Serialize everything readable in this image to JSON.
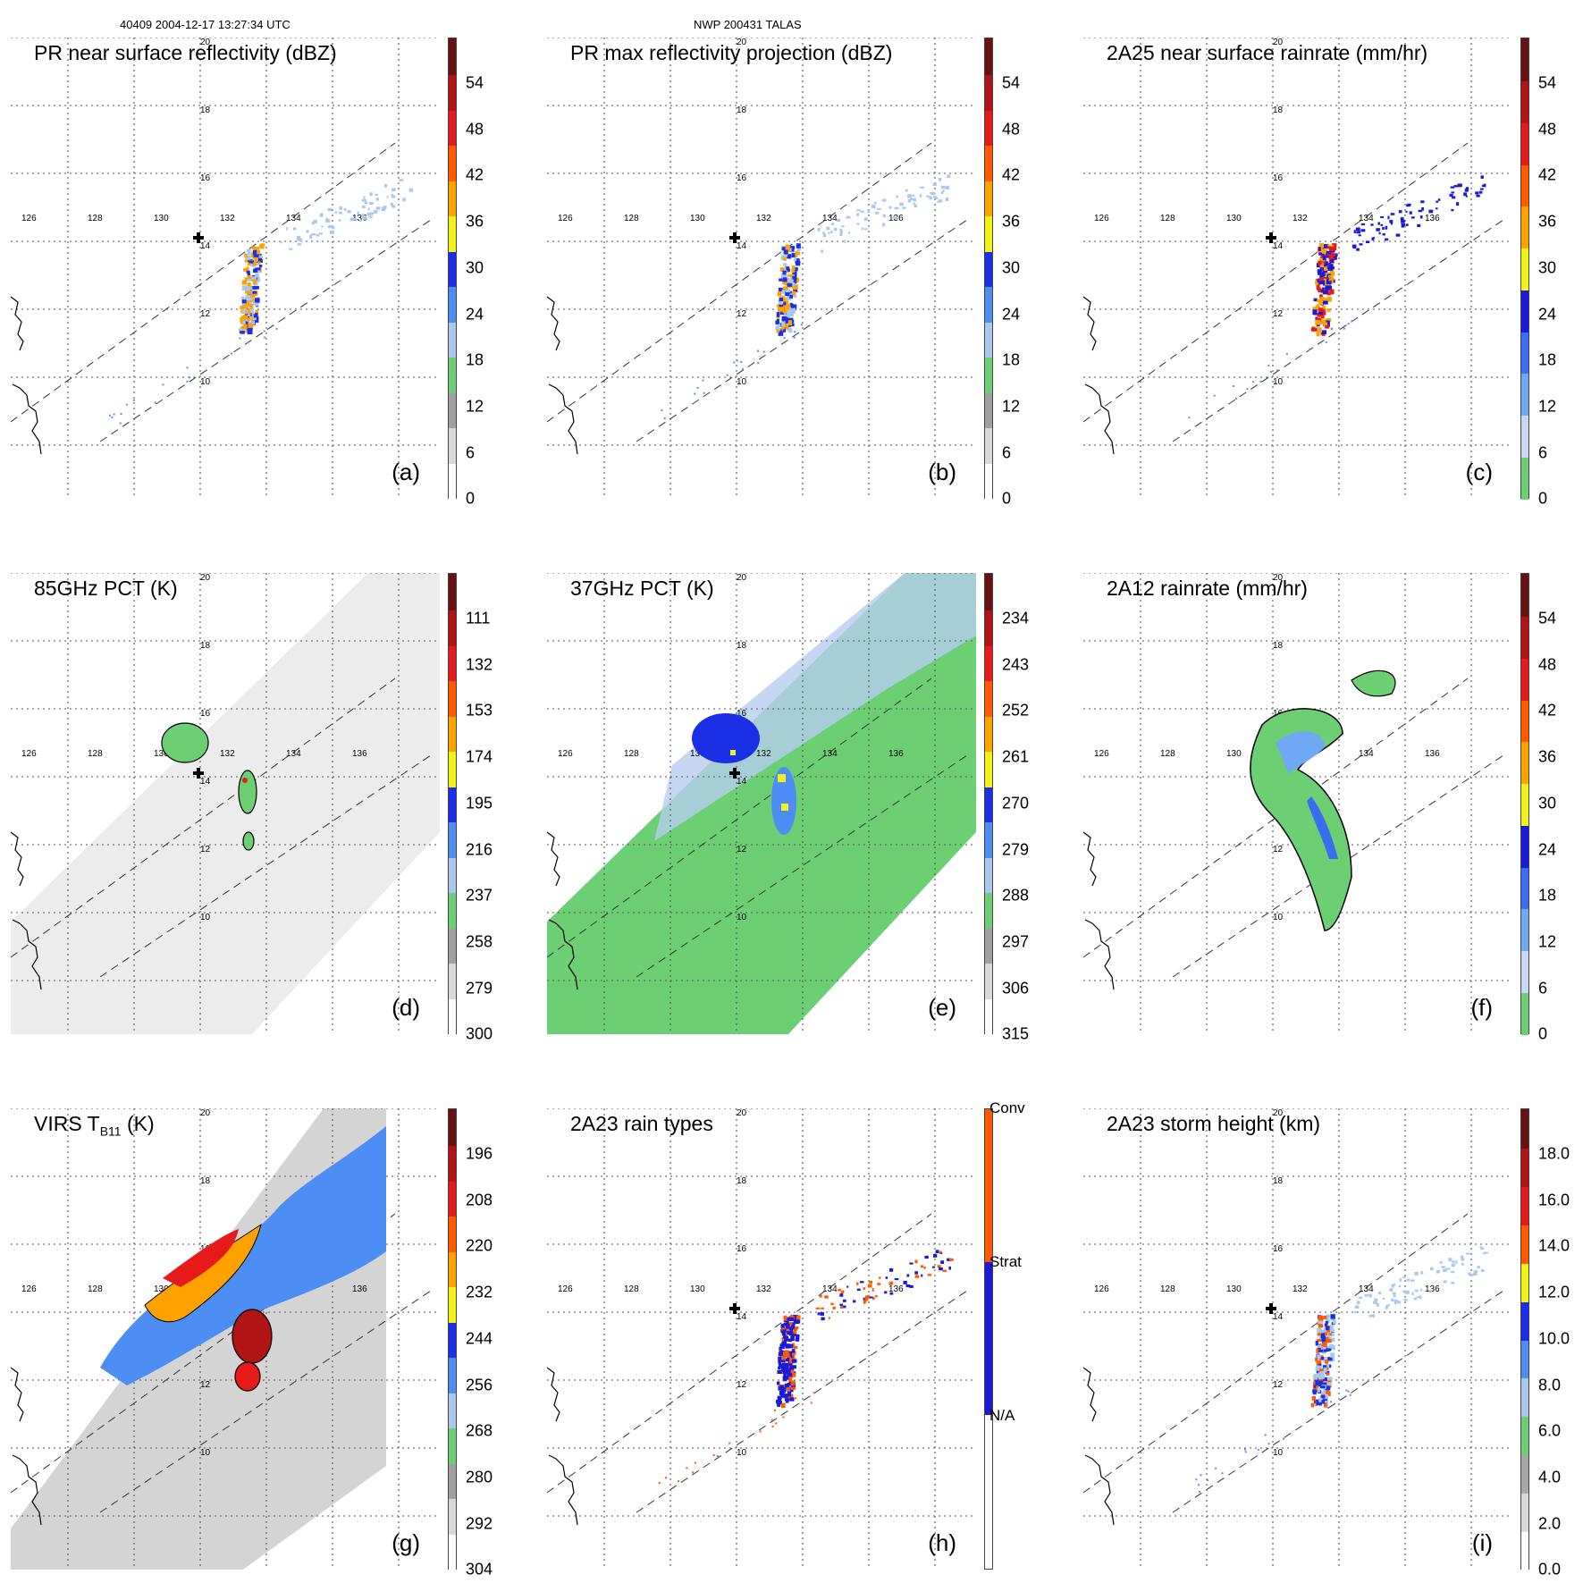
{
  "header": {
    "left": "40409 2004-12-17 13:27:34 UTC",
    "center": "NWP 200431 TALAS"
  },
  "map": {
    "lon_labels": [
      "126",
      "128",
      "130",
      "132",
      "134",
      "136"
    ],
    "lat_labels": [
      "20",
      "18",
      "16",
      "14",
      "12",
      "10"
    ]
  },
  "palettes": {
    "rainbow": [
      "#ffffff",
      "#d9d9d9",
      "#a0a0a0",
      "#6ccf74",
      "#a8c8f0",
      "#4d8ef5",
      "#1a2fe6",
      "#f2f21a",
      "#ffa200",
      "#ff5a00",
      "#e61a1a",
      "#b01414",
      "#6b1010"
    ],
    "rain": [
      "#6ccf74",
      "#c8d8f2",
      "#6fa9f5",
      "#3a6ef0",
      "#1a1ad8",
      "#f2f21a",
      "#ffa200",
      "#ff5a00",
      "#e61a1a",
      "#b01414",
      "#6b1010"
    ],
    "height": [
      "#ffffff",
      "#d9d9d9",
      "#a8a8a8",
      "#6ccf74",
      "#a8c8f0",
      "#4d8ef5",
      "#1a2fe6",
      "#f2f21a",
      "#ff5a00",
      "#e61a1a",
      "#b01414",
      "#6b1010"
    ],
    "types": [
      "#ffffff",
      "#1a1ad8",
      "#ff5a00"
    ]
  },
  "panels": [
    {
      "label": "(a)",
      "title": "PR near surface reflectivity (dBZ)",
      "palette": "rainbow",
      "colorbar_ticks": [
        "54",
        "48",
        "42",
        "36",
        "30",
        "24",
        "18",
        "12",
        "6",
        "0"
      ],
      "chart_data": {
        "type": "heatmap",
        "field": "near surface reflectivity",
        "units": "dBZ",
        "cmin": 0,
        "cmax": 60,
        "swath": "PR"
      }
    },
    {
      "label": "(b)",
      "title": "PR max reflectivity projection (dBZ)",
      "palette": "rainbow",
      "colorbar_ticks": [
        "54",
        "48",
        "42",
        "36",
        "30",
        "24",
        "18",
        "12",
        "6",
        "0"
      ],
      "chart_data": {
        "type": "heatmap",
        "field": "max reflectivity projection",
        "units": "dBZ",
        "cmin": 0,
        "cmax": 60,
        "swath": "PR"
      }
    },
    {
      "label": "(c)",
      "title": "2A25 near surface rainrate (mm/hr)",
      "palette": "rain",
      "colorbar_ticks": [
        "54",
        "48",
        "42",
        "36",
        "30",
        "24",
        "18",
        "12",
        "6",
        "0"
      ],
      "chart_data": {
        "type": "heatmap",
        "field": "2A25 near surface rainrate",
        "units": "mm/hr",
        "cmin": 0,
        "cmax": 60,
        "swath": "PR"
      }
    },
    {
      "label": "(d)",
      "title": "85GHz PCT (K)",
      "palette": "rainbow",
      "colorbar_ticks": [
        "111",
        "132",
        "153",
        "174",
        "195",
        "216",
        "237",
        "258",
        "279",
        "300"
      ],
      "chart_data": {
        "type": "heatmap",
        "field": "85GHz PCT",
        "units": "K",
        "cmin": 300,
        "cmax": 90,
        "swath": "TMI"
      }
    },
    {
      "label": "(e)",
      "title": "37GHz PCT (K)",
      "palette": "rainbow",
      "colorbar_ticks": [
        "234",
        "243",
        "252",
        "261",
        "270",
        "279",
        "288",
        "297",
        "306",
        "315"
      ],
      "chart_data": {
        "type": "heatmap",
        "field": "37GHz PCT",
        "units": "K",
        "cmin": 315,
        "cmax": 225,
        "swath": "TMI"
      }
    },
    {
      "label": "(f)",
      "title": "2A12 rainrate (mm/hr)",
      "palette": "rain",
      "colorbar_ticks": [
        "54",
        "48",
        "42",
        "36",
        "30",
        "24",
        "18",
        "12",
        "6",
        "0"
      ],
      "chart_data": {
        "type": "heatmap",
        "field": "2A12 rainrate",
        "units": "mm/hr",
        "cmin": 0,
        "cmax": 60,
        "swath": "TMI"
      }
    },
    {
      "label": "(g)",
      "title_main": "VIRS T",
      "title_sub": "B11",
      "title_units": " (K)",
      "palette": "rainbow",
      "colorbar_ticks": [
        "196",
        "208",
        "220",
        "232",
        "244",
        "256",
        "268",
        "280",
        "292",
        "304"
      ],
      "chart_data": {
        "type": "heatmap",
        "field": "VIRS TB11",
        "units": "K",
        "cmin": 304,
        "cmax": 184,
        "swath": "VIRS"
      }
    },
    {
      "label": "(h)",
      "title": "2A23 rain types",
      "palette": "types",
      "colorbar_ticks": [
        "Conv",
        "Strat",
        "N/A"
      ],
      "chart_data": {
        "type": "heatmap",
        "field": "2A23 rain types",
        "categories": [
          "N/A",
          "Strat",
          "Conv"
        ],
        "swath": "PR"
      }
    },
    {
      "label": "(i)",
      "title": "2A23 storm height (km)",
      "palette": "height",
      "colorbar_ticks": [
        "18.0",
        "16.0",
        "14.0",
        "12.0",
        "10.0",
        "8.0",
        "6.0",
        "4.0",
        "2.0",
        "0.0"
      ],
      "chart_data": {
        "type": "heatmap",
        "field": "2A23 storm height",
        "units": "km",
        "cmin": 0,
        "cmax": 20,
        "swath": "PR"
      }
    }
  ]
}
